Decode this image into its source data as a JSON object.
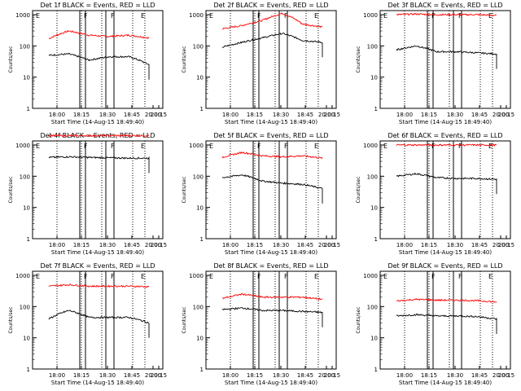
{
  "figure": {
    "panels": [
      {
        "title": "Det 1f BLACK = Events, RED = LLD",
        "labels": [
          "F",
          "F",
          "E",
          "E"
        ]
      },
      {
        "title": "Det 2f BLACK = Events, RED = LLD",
        "labels": [
          "F",
          "F",
          "E",
          "E"
        ]
      },
      {
        "title": "Det 3f BLACK = Events, RED = LLD",
        "labels": [
          "F",
          "F",
          "E",
          "E"
        ]
      },
      {
        "title": "Det 4f BLACK = Events, RED = LLD",
        "labels": [
          "F",
          "F",
          "E",
          "E"
        ]
      },
      {
        "title": "Det 5f BLACK = Events, RED = LLD",
        "labels": [
          "F",
          "F",
          "E",
          "E"
        ]
      },
      {
        "title": "Det 6f BLACK = Events, RED = LLD",
        "labels": [
          "F",
          "F",
          "E",
          "E"
        ]
      },
      {
        "title": "Det 7f BLACK = Events, RED = LLD",
        "labels": [
          "F",
          "F",
          "E",
          "E"
        ]
      },
      {
        "title": "Det 8f BLACK = Events, RED = LLD",
        "labels": [
          "F",
          "F",
          "E",
          "E"
        ]
      },
      {
        "title": "Det 9f BLACK = Events, RED = LLD",
        "labels": [
          "F",
          "F",
          "E",
          "E"
        ]
      }
    ]
  },
  "chart_data": [
    {
      "type": "line",
      "title": "Det 1f BLACK = Events, RED = LLD",
      "xlabel": "Start Time (14-Aug-15 18:49:40)",
      "ylabel": "Counts/sec",
      "yscale": "log",
      "ylim": [
        1,
        1000
      ],
      "yticks": [
        "1",
        "10",
        "100",
        "1000"
      ],
      "xticks": [
        "18:00",
        "18:15",
        "18:30",
        "18:45",
        "20:00",
        "20:15"
      ],
      "x": [
        "18:00",
        "18:15",
        "18:30",
        "18:45",
        "20:00",
        "20:15"
      ],
      "series": [
        {
          "color": "#ff0000",
          "values": [
            170,
            300,
            220,
            200,
            220,
            180
          ]
        },
        {
          "color": "#000000",
          "values": [
            50,
            55,
            35,
            45,
            45,
            25
          ]
        }
      ]
    },
    {
      "type": "line",
      "title": "Det 2f BLACK = Events, RED = LLD",
      "xlabel": "Start Time (14-Aug-15 18:49:40)",
      "ylabel": "Counts/sec",
      "yscale": "log",
      "ylim": [
        1,
        1000
      ],
      "yticks": [
        "1",
        "10",
        "100",
        "1000"
      ],
      "xticks": [
        "18:00",
        "18:15",
        "18:30",
        "18:45",
        "20:00",
        "20:15"
      ],
      "x": [
        "18:00",
        "18:15",
        "18:30",
        "18:45",
        "20:00",
        "20:15"
      ],
      "series": [
        {
          "color": "#ff0000",
          "values": [
            350,
            450,
            650,
            1100,
            500,
            400
          ]
        },
        {
          "color": "#000000",
          "values": [
            90,
            130,
            180,
            250,
            150,
            130
          ]
        }
      ]
    },
    {
      "type": "line",
      "title": "Det 3f BLACK = Events, RED = LLD",
      "xlabel": "Start Time (14-Aug-15 18:49:40)",
      "ylabel": "Counts/sec",
      "yscale": "log",
      "ylim": [
        1,
        1000
      ],
      "yticks": [
        "1",
        "10",
        "100",
        "1000"
      ],
      "xticks": [
        "18:00",
        "18:15",
        "18:30",
        "18:45",
        "20:00",
        "20:15"
      ],
      "x": [
        "18:00",
        "18:15",
        "18:30",
        "18:45",
        "20:00",
        "20:15"
      ],
      "series": [
        {
          "color": "#ff0000",
          "values": [
            1000,
            1050,
            1000,
            1000,
            1000,
            950
          ]
        },
        {
          "color": "#000000",
          "values": [
            75,
            100,
            65,
            65,
            60,
            55
          ]
        }
      ]
    },
    {
      "type": "line",
      "title": "Det 4f BLACK = Events, RED = LLD",
      "xlabel": "Start Time (14-Aug-15 18:49:40)",
      "ylabel": "Counts/sec",
      "yscale": "log",
      "ylim": [
        1,
        1000
      ],
      "yticks": [
        "1",
        "10",
        "100",
        "1000"
      ],
      "xticks": [
        "18:00",
        "18:15",
        "18:30",
        "18:45",
        "20:00",
        "20:15"
      ],
      "x": [
        "18:00",
        "18:15",
        "18:30",
        "18:45",
        "20:00",
        "20:15"
      ],
      "series": [
        {
          "color": "#ff0000",
          "values": [
            2000,
            2000,
            2000,
            2000,
            2000,
            2000
          ]
        },
        {
          "color": "#000000",
          "values": [
            400,
            420,
            400,
            390,
            380,
            380
          ]
        }
      ]
    },
    {
      "type": "line",
      "title": "Det 5f BLACK = Events, RED = LLD",
      "xlabel": "Start Time (14-Aug-15 18:49:40)",
      "ylabel": "Counts/sec",
      "yscale": "log",
      "ylim": [
        1,
        1000
      ],
      "yticks": [
        "1",
        "10",
        "100",
        "1000"
      ],
      "xticks": [
        "18:00",
        "18:15",
        "18:30",
        "18:45",
        "20:00",
        "20:15"
      ],
      "x": [
        "18:00",
        "18:15",
        "18:30",
        "18:45",
        "20:00",
        "20:15"
      ],
      "series": [
        {
          "color": "#ff0000",
          "values": [
            400,
            580,
            450,
            420,
            450,
            380
          ]
        },
        {
          "color": "#000000",
          "values": [
            90,
            110,
            70,
            60,
            55,
            40
          ]
        }
      ]
    },
    {
      "type": "line",
      "title": "Det 6f BLACK = Events, RED = LLD",
      "xlabel": "Start Time (14-Aug-15 18:49:40)",
      "ylabel": "Counts/sec",
      "yscale": "log",
      "ylim": [
        1,
        1000
      ],
      "yticks": [
        "1",
        "10",
        "100",
        "1000"
      ],
      "xticks": [
        "18:00",
        "18:15",
        "18:30",
        "18:45",
        "20:00",
        "20:15"
      ],
      "x": [
        "18:00",
        "18:15",
        "18:30",
        "18:45",
        "20:00",
        "20:15"
      ],
      "series": [
        {
          "color": "#ff0000",
          "values": [
            1000,
            1000,
            1000,
            1000,
            1000,
            1000
          ]
        },
        {
          "color": "#000000",
          "values": [
            100,
            120,
            90,
            85,
            85,
            80
          ]
        }
      ]
    },
    {
      "type": "line",
      "title": "Det 7f BLACK = Events, RED = LLD",
      "xlabel": "Start Time (14-Aug-15 18:49:40)",
      "ylabel": "Counts/sec",
      "yscale": "log",
      "ylim": [
        1,
        1000
      ],
      "yticks": [
        "1",
        "10",
        "100",
        "1000"
      ],
      "xticks": [
        "18:00",
        "18:15",
        "18:30",
        "18:45",
        "20:00",
        "20:15"
      ],
      "x": [
        "18:00",
        "18:15",
        "18:30",
        "18:45",
        "20:00",
        "20:15"
      ],
      "series": [
        {
          "color": "#ff0000",
          "values": [
            450,
            500,
            450,
            450,
            450,
            430
          ]
        },
        {
          "color": "#000000",
          "values": [
            40,
            75,
            45,
            45,
            45,
            30
          ]
        }
      ]
    },
    {
      "type": "line",
      "title": "Det 8f BLACK = Events, RED = LLD",
      "xlabel": "Start Time (14-Aug-15 18:49:40)",
      "ylabel": "Counts/sec",
      "yscale": "log",
      "ylim": [
        1,
        1000
      ],
      "yticks": [
        "1",
        "10",
        "100",
        "1000"
      ],
      "xticks": [
        "18:00",
        "18:15",
        "18:30",
        "18:45",
        "20:00",
        "20:15"
      ],
      "x": [
        "18:00",
        "18:15",
        "18:30",
        "18:45",
        "20:00",
        "20:15"
      ],
      "series": [
        {
          "color": "#ff0000",
          "values": [
            180,
            250,
            200,
            200,
            200,
            170
          ]
        },
        {
          "color": "#000000",
          "values": [
            80,
            90,
            75,
            75,
            70,
            65
          ]
        }
      ]
    },
    {
      "type": "line",
      "title": "Det 9f BLACK = Events, RED = LLD",
      "xlabel": "Start Time (14-Aug-15 18:49:40)",
      "ylabel": "Counts/sec",
      "yscale": "log",
      "ylim": [
        1,
        1000
      ],
      "yticks": [
        "1",
        "10",
        "100",
        "1000"
      ],
      "xticks": [
        "18:00",
        "18:15",
        "18:30",
        "18:45",
        "20:00",
        "20:15"
      ],
      "x": [
        "18:00",
        "18:15",
        "18:30",
        "18:45",
        "20:00",
        "20:15"
      ],
      "series": [
        {
          "color": "#ff0000",
          "values": [
            150,
            170,
            160,
            160,
            155,
            140
          ]
        },
        {
          "color": "#000000",
          "values": [
            50,
            55,
            50,
            50,
            48,
            40
          ]
        }
      ]
    }
  ]
}
